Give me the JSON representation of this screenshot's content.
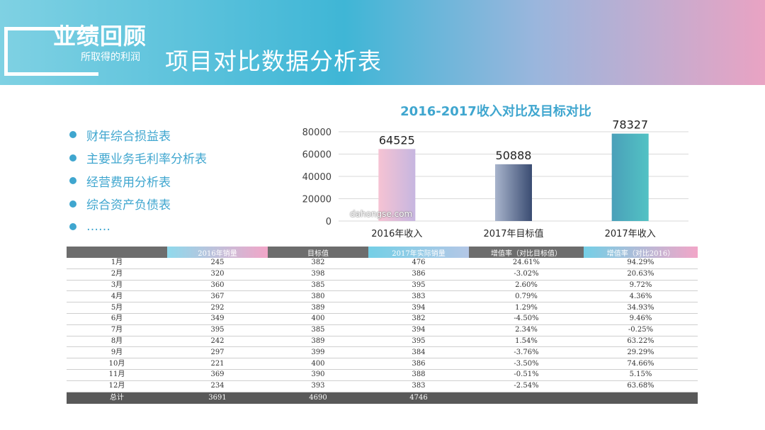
{
  "header": {
    "section_title": "业绩回顾",
    "section_subtitle": "所取得的利润",
    "main_title": "项目对比数据分析表"
  },
  "bullets": [
    "财年综合损益表",
    "主要业务毛利率分析表",
    "经营费用分析表",
    "综合资产负债表",
    "……"
  ],
  "watermark": "dahongse.com",
  "chart_data": {
    "type": "bar",
    "title": "2016-2017收入对比及目标对比",
    "categories": [
      "2016年收入",
      "2017年目标值",
      "2017年收入"
    ],
    "values": [
      64525,
      50888,
      78327
    ],
    "ylim": [
      0,
      80000
    ],
    "yticks": [
      0,
      20000,
      40000,
      60000,
      80000
    ],
    "grid": true,
    "bar_colors": [
      [
        "#f6c3d3",
        "#c6b6e0"
      ],
      [
        "#a8b4cc",
        "#3a4c72"
      ],
      [
        "#4aa0b9",
        "#52c2c4"
      ]
    ]
  },
  "table": {
    "headers": [
      "",
      "2016年销量",
      "目标值",
      "2017年实际销量",
      "增值率（对比目标值）",
      "增值率（对比2016）"
    ],
    "rows": [
      [
        "1月",
        "245",
        "382",
        "476",
        "24.61%",
        "94.29%"
      ],
      [
        "2月",
        "320",
        "398",
        "386",
        "-3.02%",
        "20.63%"
      ],
      [
        "3月",
        "360",
        "385",
        "395",
        "2.60%",
        "9.72%"
      ],
      [
        "4月",
        "367",
        "380",
        "383",
        "0.79%",
        "4.36%"
      ],
      [
        "5月",
        "292",
        "389",
        "394",
        "1.29%",
        "34.93%"
      ],
      [
        "6月",
        "349",
        "400",
        "382",
        "-4.50%",
        "9.46%"
      ],
      [
        "7月",
        "395",
        "385",
        "394",
        "2.34%",
        "-0.25%"
      ],
      [
        "8月",
        "242",
        "389",
        "395",
        "1.54%",
        "63.22%"
      ],
      [
        "9月",
        "297",
        "399",
        "384",
        "-3.76%",
        "29.29%"
      ],
      [
        "10月",
        "221",
        "400",
        "386",
        "-3.50%",
        "74.66%"
      ],
      [
        "11月",
        "369",
        "390",
        "388",
        "-0.51%",
        "5.15%"
      ],
      [
        "12月",
        "234",
        "393",
        "383",
        "-2.54%",
        "63.68%"
      ]
    ],
    "total": [
      "总计",
      "3691",
      "4690",
      "4746",
      "",
      ""
    ]
  }
}
